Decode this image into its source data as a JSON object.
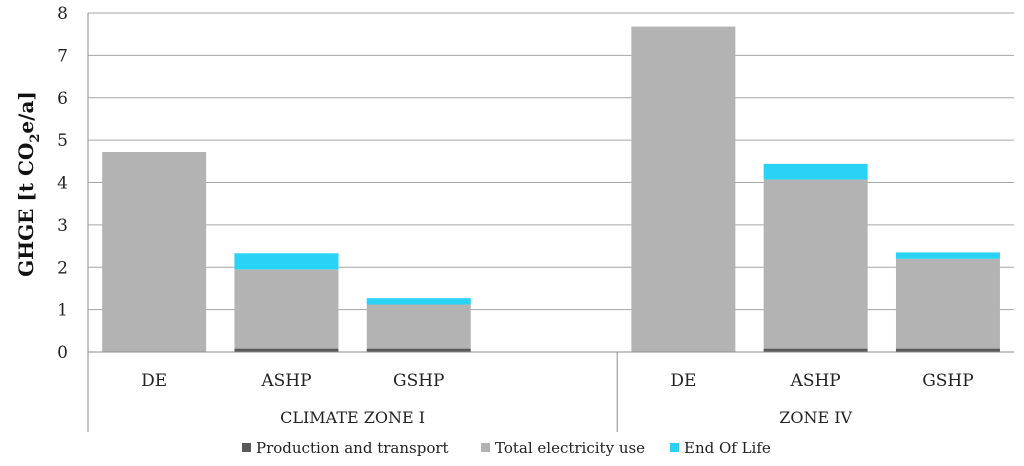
{
  "chart_data": {
    "type": "bar",
    "stacked": true,
    "ylabel": "GHGE [t CO2e/a]",
    "ylabel_parts": {
      "main": "GHGE [t CO",
      "sub": "2",
      "tail": "e/a]"
    },
    "ylim": [
      0,
      8
    ],
    "yticks": [
      "0",
      "1",
      "2",
      "3",
      "4",
      "5",
      "6",
      "7",
      "8"
    ],
    "grid": true,
    "legend_position": "bottom",
    "groups": [
      {
        "label": "CLIMATE ZONE I",
        "categories": [
          "DE",
          "ASHP",
          "GSHP"
        ],
        "slots": 4
      },
      {
        "label": "ZONE IV",
        "categories": [
          "DE",
          "ASHP",
          "GSHP"
        ],
        "slots": 3
      }
    ],
    "series": [
      {
        "name": "Production and transport",
        "color": "#595959",
        "values": [
          0.0,
          0.08,
          0.08,
          0.0,
          0.08,
          0.08
        ]
      },
      {
        "name": "Total electricity use",
        "color": "#b3b3b3",
        "values": [
          4.72,
          1.87,
          1.04,
          7.68,
          3.99,
          2.12
        ]
      },
      {
        "name": "End Of Life",
        "color": "#29d3f5",
        "values": [
          0.0,
          0.38,
          0.15,
          0.0,
          0.37,
          0.15
        ]
      }
    ]
  }
}
